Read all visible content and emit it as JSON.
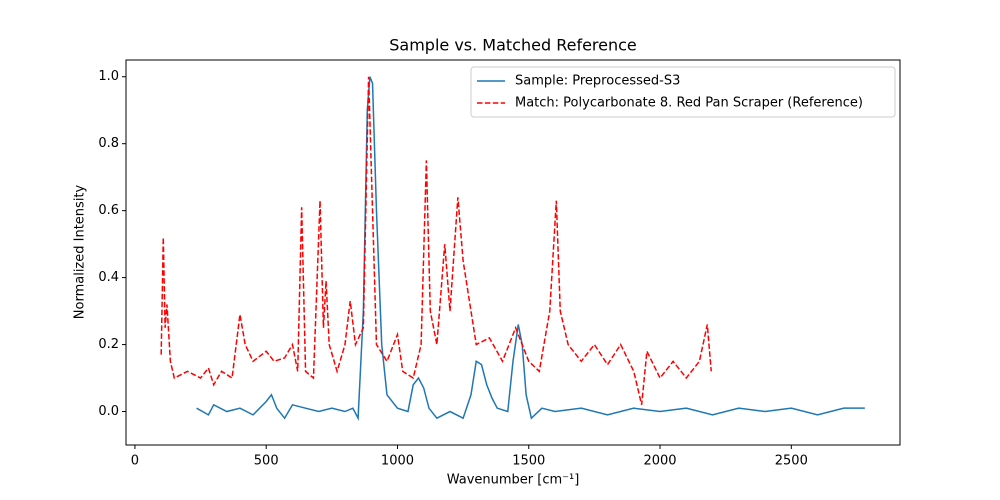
{
  "chart_data": {
    "type": "line",
    "title": "Sample vs. Matched Reference",
    "xlabel": "Wavenumber [cm⁻¹]",
    "ylabel": "Normalized Intensity",
    "xlim": [
      -34,
      2914
    ],
    "ylim": [
      -0.1,
      1.05
    ],
    "xticks": [
      0,
      500,
      1000,
      1500,
      2000,
      2500
    ],
    "yticks": [
      {
        "value": 0,
        "label": "0.0"
      },
      0.2,
      0.4,
      0.6,
      0.8,
      {
        "value": 1,
        "label": "1.0"
      }
    ],
    "legend": "upper right",
    "series": [
      {
        "name": "Sample: Preprocessed-S3",
        "color": "#1f77b4",
        "linestyle": "solid",
        "x": [
          235,
          280,
          300,
          350,
          400,
          450,
          500,
          520,
          540,
          570,
          600,
          650,
          700,
          750,
          800,
          830,
          850,
          870,
          885,
          895,
          905,
          920,
          940,
          960,
          1000,
          1040,
          1060,
          1080,
          1100,
          1120,
          1150,
          1200,
          1250,
          1280,
          1300,
          1320,
          1340,
          1360,
          1380,
          1420,
          1440,
          1460,
          1475,
          1490,
          1510,
          1550,
          1600,
          1700,
          1800,
          1900,
          2000,
          2100,
          2200,
          2300,
          2400,
          2500,
          2600,
          2700,
          2780
        ],
        "values": [
          0.01,
          -0.01,
          0.02,
          0.0,
          0.01,
          -0.01,
          0.03,
          0.05,
          0.01,
          -0.02,
          0.02,
          0.01,
          0.0,
          0.01,
          0.0,
          0.01,
          -0.02,
          0.3,
          0.9,
          1.0,
          0.98,
          0.6,
          0.2,
          0.05,
          0.01,
          0.0,
          0.08,
          0.1,
          0.07,
          0.01,
          -0.02,
          0.0,
          -0.02,
          0.05,
          0.15,
          0.14,
          0.08,
          0.04,
          0.01,
          0.0,
          0.15,
          0.26,
          0.2,
          0.05,
          -0.02,
          0.01,
          0.0,
          0.01,
          -0.01,
          0.01,
          0.0,
          0.01,
          -0.01,
          0.01,
          0.0,
          0.01,
          -0.01,
          0.01,
          0.01
        ]
      },
      {
        "name": "Match: Polycarbonate 8. Red Pan Scraper (Reference)",
        "color": "#ff0000",
        "linestyle": "dashed",
        "x": [
          100,
          108,
          115,
          122,
          135,
          150,
          200,
          250,
          280,
          300,
          330,
          370,
          400,
          420,
          450,
          500,
          530,
          570,
          600,
          620,
          635,
          650,
          680,
          705,
          718,
          728,
          740,
          770,
          800,
          820,
          840,
          870,
          890,
          905,
          920,
          960,
          1000,
          1020,
          1060,
          1090,
          1110,
          1125,
          1150,
          1180,
          1200,
          1230,
          1250,
          1280,
          1300,
          1350,
          1400,
          1450,
          1500,
          1540,
          1580,
          1605,
          1620,
          1650,
          1700,
          1750,
          1800,
          1850,
          1900,
          1930,
          1950,
          2000,
          2050,
          2100,
          2150,
          2180,
          2195
        ],
        "values": [
          0.17,
          0.52,
          0.25,
          0.32,
          0.15,
          0.1,
          0.12,
          0.1,
          0.13,
          0.08,
          0.12,
          0.1,
          0.29,
          0.2,
          0.15,
          0.18,
          0.15,
          0.16,
          0.2,
          0.12,
          0.61,
          0.12,
          0.1,
          0.63,
          0.25,
          0.39,
          0.2,
          0.12,
          0.2,
          0.33,
          0.2,
          0.25,
          1.0,
          0.6,
          0.2,
          0.15,
          0.23,
          0.12,
          0.1,
          0.2,
          0.75,
          0.3,
          0.2,
          0.5,
          0.3,
          0.64,
          0.45,
          0.3,
          0.2,
          0.22,
          0.15,
          0.25,
          0.15,
          0.12,
          0.3,
          0.63,
          0.3,
          0.2,
          0.15,
          0.2,
          0.14,
          0.2,
          0.12,
          0.02,
          0.18,
          0.1,
          0.15,
          0.1,
          0.15,
          0.26,
          0.12
        ]
      }
    ]
  }
}
